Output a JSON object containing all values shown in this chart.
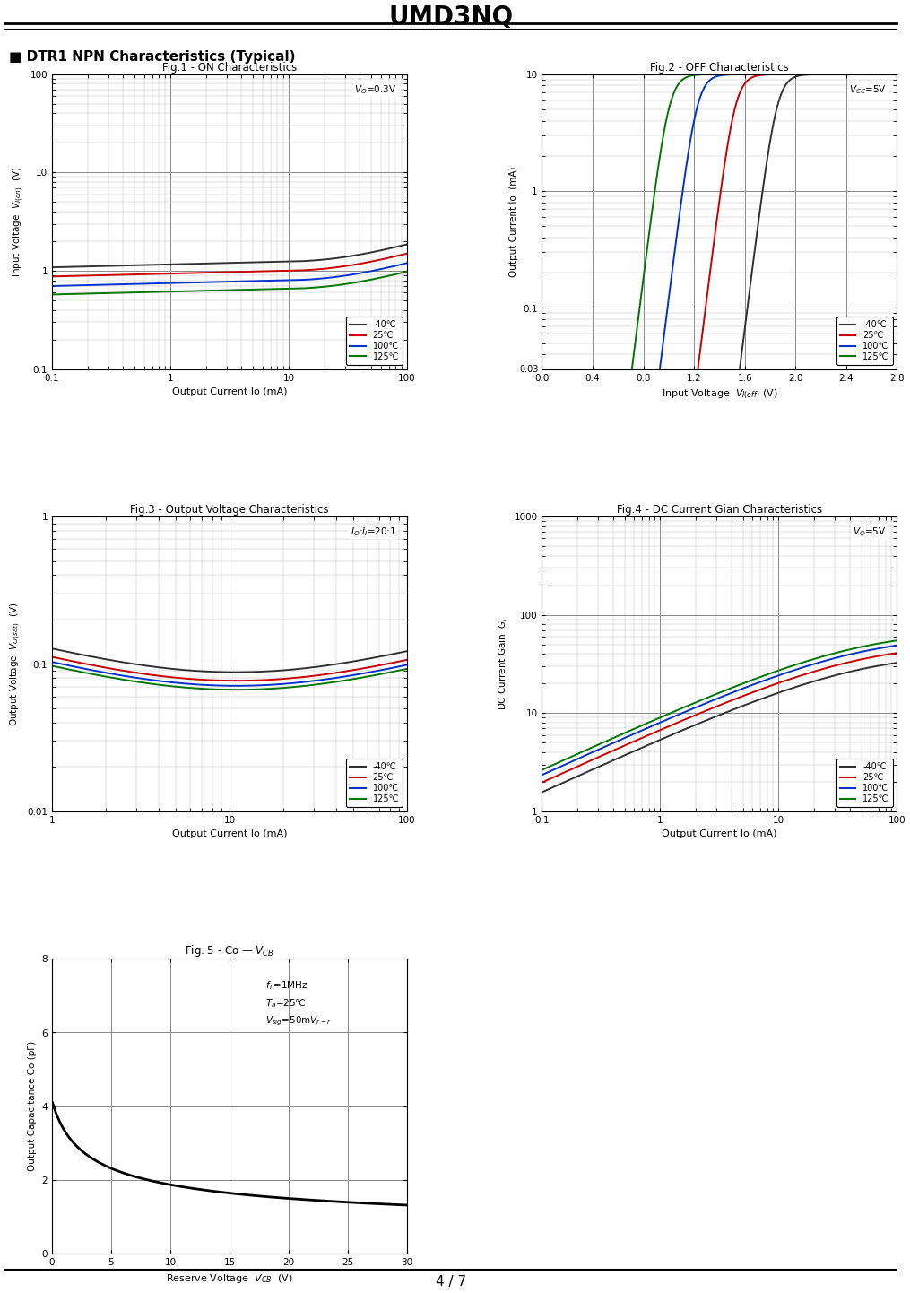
{
  "page_title": "UMD3NQ",
  "section_title": "■ DTR1 NPN Characteristics (Typical)",
  "fig1_title": "Fig.1 - ON Characteristics",
  "fig2_title": "Fig.2 - OFF Characteristics",
  "fig3_title": "Fig.3 - Output Voltage Characteristics",
  "fig4_title": "Fig.4 - DC Current Gian Characteristics",
  "fig5_title": "Fig.5 - Co — V",
  "colors": {
    "minus40": "#323232",
    "25": "#cc0000",
    "100": "#0033cc",
    "125": "#007700"
  },
  "legend_labels": [
    "-40℃",
    "25℃",
    "100℃",
    "125℃"
  ],
  "footer": "4 / 7",
  "background": "#ffffff"
}
